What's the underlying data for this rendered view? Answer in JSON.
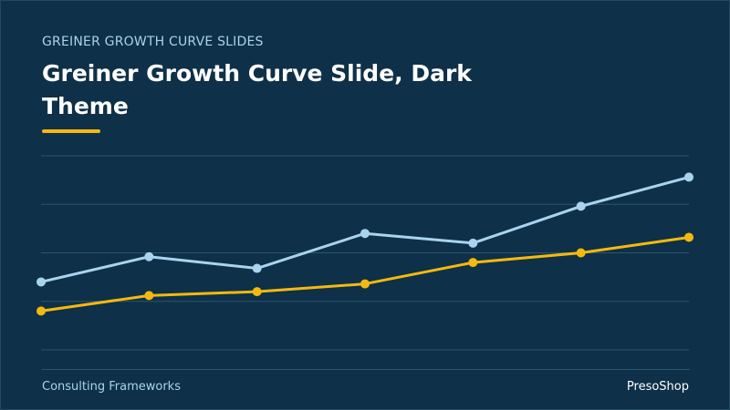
{
  "header": {
    "kicker": "GREINER GROWTH CURVE SLIDES",
    "title": "Greiner Growth Curve Slide, Dark Theme"
  },
  "chart_data": {
    "type": "line",
    "series": [
      {
        "color": "#a9d3ee",
        "values": [
          35,
          48,
          42,
          60,
          55,
          74,
          89
        ]
      },
      {
        "color": "#f4b90f",
        "values": [
          20,
          28,
          30,
          34,
          45,
          50,
          58
        ]
      }
    ],
    "ylim": [
      0,
      100
    ],
    "yticks": [
      0,
      25,
      50,
      75,
      100
    ],
    "grid": true
  },
  "footer": {
    "left": "Consulting Frameworks",
    "right": "PresoShop"
  }
}
